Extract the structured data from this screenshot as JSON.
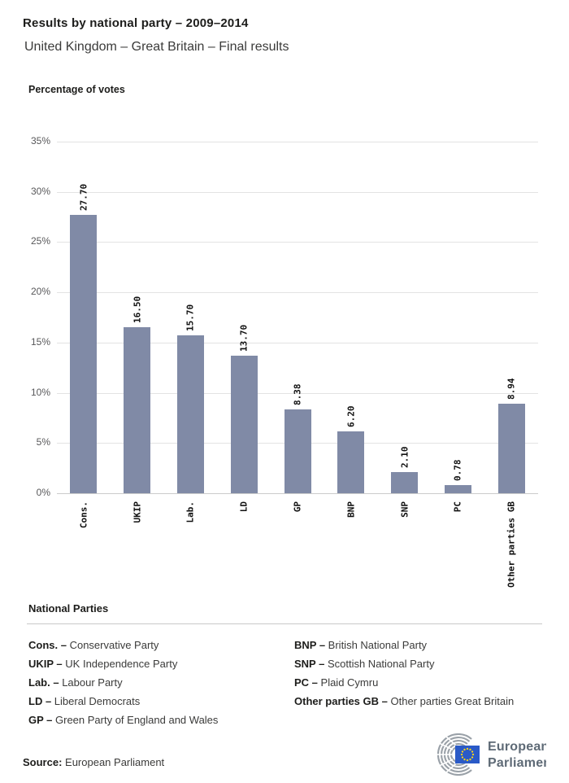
{
  "header": {
    "title": "Results by national party – 2009–2014",
    "subtitle": "United Kingdom – Great Britain – Final results"
  },
  "chart_data": {
    "type": "bar",
    "title": "Results by national party – 2009–2014",
    "ylabel": "Percentage of votes",
    "xlabel": "",
    "ylim": [
      0,
      35
    ],
    "grid": true,
    "y_ticks": [
      0,
      5,
      10,
      15,
      20,
      25,
      30,
      35
    ],
    "y_tick_labels": [
      "0%",
      "5%",
      "10%",
      "15%",
      "20%",
      "25%",
      "30%",
      "35%"
    ],
    "categories": [
      "Cons.",
      "UKIP",
      "Lab.",
      "LD",
      "GP",
      "BNP",
      "SNP",
      "PC",
      "Other parties GB"
    ],
    "values": [
      27.7,
      16.5,
      15.7,
      13.7,
      8.38,
      6.2,
      2.1,
      0.78,
      8.94
    ],
    "value_labels": [
      "27.70",
      "16.50",
      "15.70",
      "13.70",
      "8.38",
      "6.20",
      "2.10",
      "0.78",
      "8.94"
    ],
    "bar_color": "#808aa6",
    "legend_position": "none"
  },
  "legend": {
    "heading": "National Parties",
    "items_left": [
      {
        "abbr": "Cons. –",
        "name": "Conservative Party"
      },
      {
        "abbr": "UKIP –",
        "name": "UK Independence Party"
      },
      {
        "abbr": "Lab. –",
        "name": "Labour Party"
      },
      {
        "abbr": "LD –",
        "name": "Liberal Democrats"
      },
      {
        "abbr": "GP –",
        "name": "Green Party of England and Wales"
      }
    ],
    "items_right": [
      {
        "abbr": "BNP –",
        "name": "British National Party"
      },
      {
        "abbr": "SNP –",
        "name": "Scottish National Party"
      },
      {
        "abbr": "PC –",
        "name": "Plaid Cymru"
      },
      {
        "abbr": "Other parties GB –",
        "name": "Other parties Great Britain"
      }
    ]
  },
  "footer": {
    "source_label": "Source:",
    "source_value": "European Parliament",
    "logo_line1": "European",
    "logo_line2": "Parliament",
    "logo_colors": {
      "arcs": "#9aa1a8",
      "flag": "#2a5ac7",
      "stars": "#ffd617",
      "text": "#5e6a76"
    }
  }
}
